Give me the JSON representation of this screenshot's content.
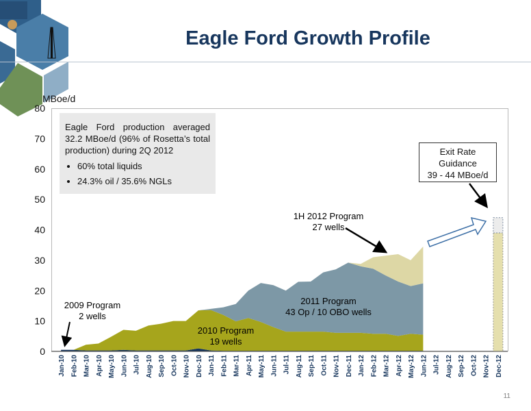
{
  "header": {
    "title": "Eagle Ford Growth Profile",
    "page_number": "11"
  },
  "info_box": {
    "text": "Eagle Ford production averaged 32.2 MBoe/d (96% of Rosetta’s total production) during 2Q 2012",
    "bullets": [
      "60% total liquids",
      "24.3% oil / 35.6% NGLs"
    ]
  },
  "annotations": {
    "p2009": {
      "line1": "2009 Program",
      "line2": "2 wells"
    },
    "p2010": {
      "line1": "2010 Program",
      "line2": "19 wells"
    },
    "p2011": {
      "line1": "2011 Program",
      "line2": "43 Op / 10 OBO wells"
    },
    "p2012": {
      "line1": "1H 2012 Program",
      "line2": "27 wells"
    },
    "exit": {
      "line1": "Exit Rate",
      "line2": "Guidance",
      "line3": "39 - 44 MBoe/d"
    }
  },
  "chart_data": {
    "type": "area",
    "title": "Eagle Ford Growth Profile",
    "ylabel": "MBoe/d",
    "xlabel": "",
    "ylim": [
      0,
      80
    ],
    "yticks": [
      0,
      10,
      20,
      30,
      40,
      50,
      60,
      70,
      80
    ],
    "grid": false,
    "stacked": true,
    "categories": [
      "Jan-10",
      "Feb-10",
      "Mar-10",
      "Apr-10",
      "May-10",
      "Jun-10",
      "Jul-10",
      "Aug-10",
      "Sep-10",
      "Oct-10",
      "Nov-10",
      "Dec-10",
      "Jan-11",
      "Feb-11",
      "Mar-11",
      "Apr-11",
      "May-11",
      "Jun-11",
      "Jul-11",
      "Aug-11",
      "Sep-11",
      "Oct-11",
      "Nov-11",
      "Dec-11",
      "Jan-12",
      "Feb-12",
      "Mar-12",
      "Apr-12",
      "May-12",
      "Jun-12",
      "Jul-12",
      "Aug-12",
      "Sep-12",
      "Oct-12",
      "Nov-12",
      "Dec-12"
    ],
    "series": [
      {
        "name": "2009 Program",
        "color": "#17365d",
        "values": [
          0.5,
          0.5,
          0.3,
          0.3,
          0.3,
          0.5,
          0.3,
          0.3,
          0.3,
          0.3,
          0.3,
          1.0,
          0.3,
          0.2,
          0.2,
          0.2,
          0.2,
          0.2,
          0.2,
          0.2,
          0.2,
          0.2,
          0.2,
          0.2,
          0.2,
          0.2,
          0.2,
          0.2,
          0.2,
          0.2,
          null,
          null,
          null,
          null,
          null,
          null
        ]
      },
      {
        "name": "2010 Program",
        "color": "#a6a51c",
        "values": [
          0,
          0,
          1.9,
          2.3,
          4.5,
          6.6,
          6.5,
          8.2,
          8.8,
          9.7,
          9.7,
          12.5,
          13.3,
          11.8,
          9.7,
          10.8,
          9.5,
          7.8,
          6.3,
          6.3,
          6.3,
          6.3,
          5.9,
          5.9,
          5.9,
          5.6,
          5.6,
          4.9,
          5.6,
          5.3,
          null,
          null,
          null,
          null,
          null,
          null
        ]
      },
      {
        "name": "2011 Program",
        "color": "#7d98a6",
        "values": [
          0,
          0,
          0,
          0,
          0,
          0,
          0,
          0,
          0,
          0,
          0,
          0,
          0.4,
          2.5,
          5.7,
          9.0,
          12.8,
          13.8,
          13.5,
          16.4,
          16.5,
          19.5,
          20.9,
          23.1,
          21.9,
          21.4,
          19.2,
          17.9,
          15.7,
          16.9,
          null,
          null,
          null,
          null,
          null,
          null
        ]
      },
      {
        "name": "1H 2012 Program",
        "color": "#ddd7a5",
        "values": [
          0,
          0,
          0,
          0,
          0,
          0,
          0,
          0,
          0,
          0,
          0,
          0,
          0,
          0,
          0,
          0,
          0,
          0,
          0,
          0,
          0,
          0,
          0,
          0,
          0.8,
          3.8,
          6.5,
          9.0,
          8.5,
          12.1,
          null,
          null,
          null,
          null,
          null,
          null
        ]
      }
    ],
    "exit_rate_guidance": {
      "category": "Dec-12",
      "low": 39,
      "high": 44,
      "colors": [
        "#e5dfad",
        "#ececec"
      ]
    }
  }
}
